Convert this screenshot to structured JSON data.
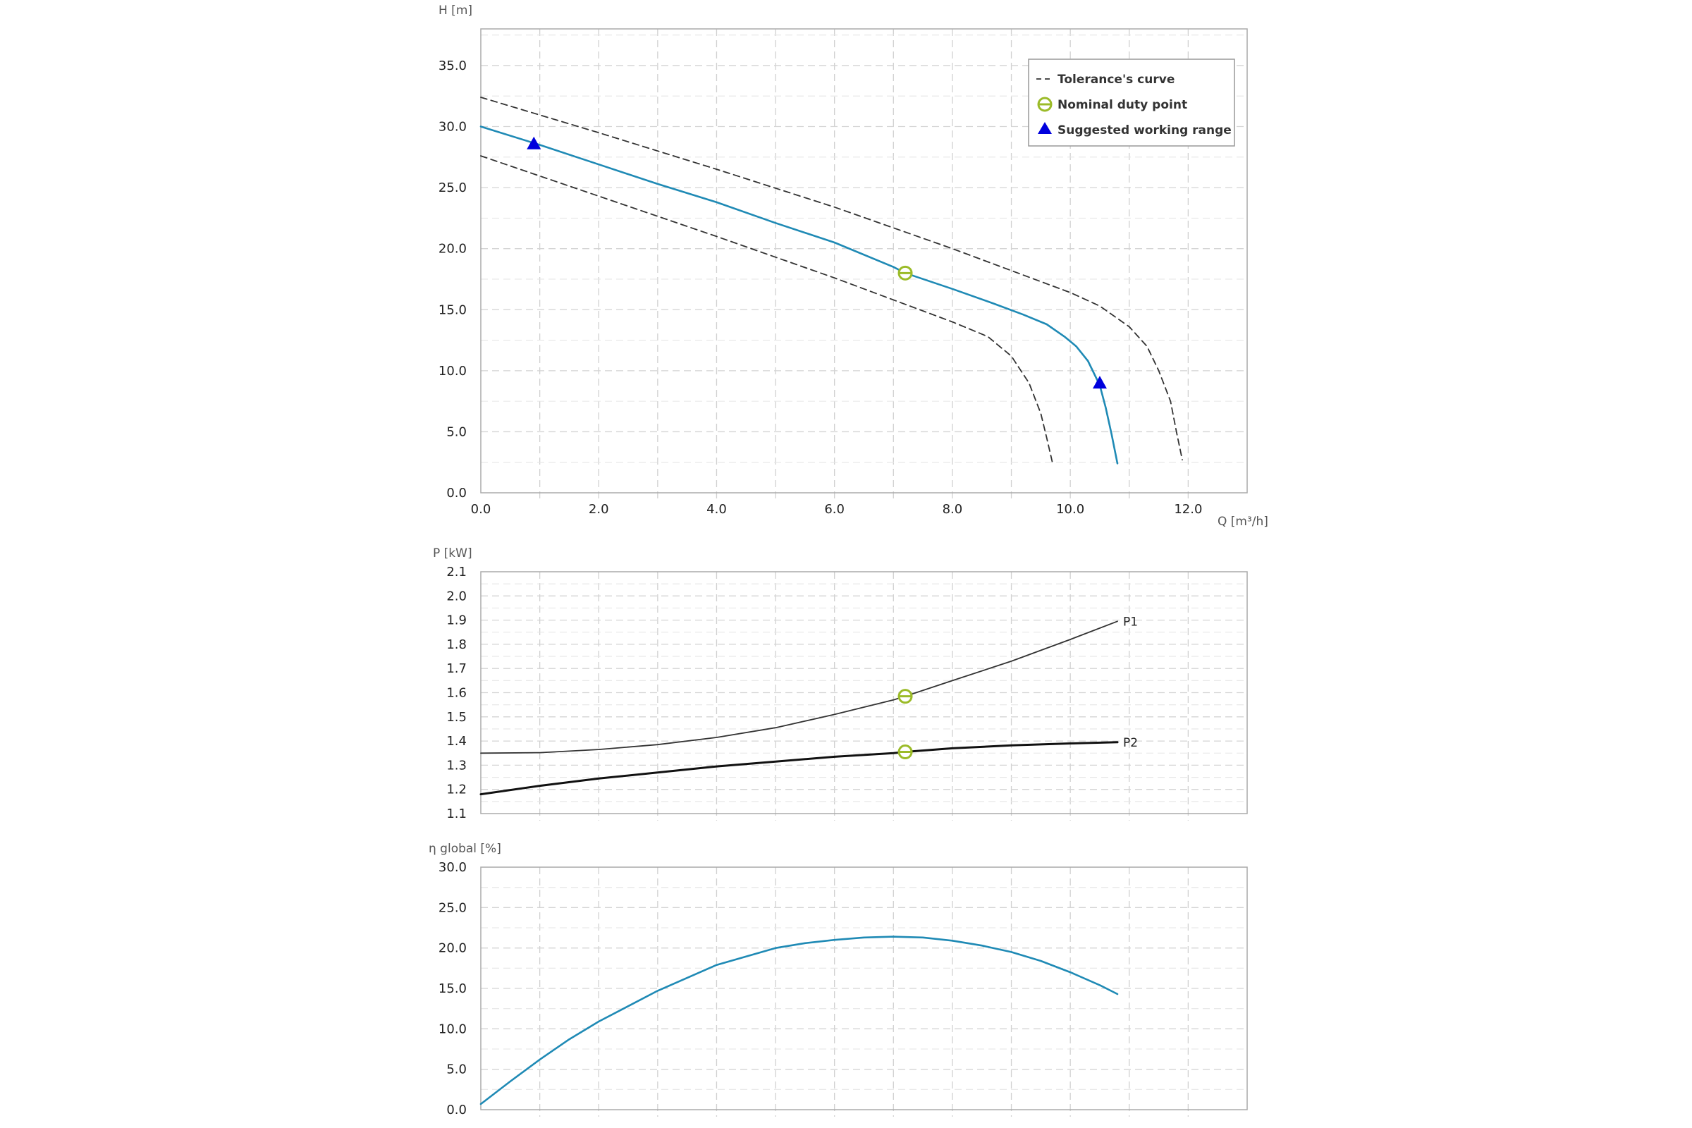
{
  "chart_data": [
    {
      "type": "line",
      "ylabel": "H [m]",
      "xlabel": "Q [m³/h]",
      "xlim": [
        0,
        13
      ],
      "ylim": [
        0,
        38
      ],
      "xticks": [
        "0.0",
        "2.0",
        "4.0",
        "6.0",
        "8.0",
        "10.0",
        "12.0"
      ],
      "yticks": [
        "0.0",
        "5.0",
        "10.0",
        "15.0",
        "20.0",
        "25.0",
        "30.0",
        "35.0"
      ],
      "grid": true,
      "legend_position": "top-right",
      "legend": [
        "Tolerance's curve",
        "Nominal duty point",
        "Suggested working range"
      ],
      "series": [
        {
          "style": "solid",
          "color": "#1f8ab5",
          "x": [
            0,
            1,
            2,
            3,
            4,
            5,
            6,
            7,
            7.2,
            8,
            8.7,
            9.2,
            9.6,
            9.9,
            10.1,
            10.3,
            10.5,
            10.6,
            10.7,
            10.8
          ],
          "y": [
            30.0,
            28.5,
            26.9,
            25.3,
            23.8,
            22.1,
            20.5,
            18.5,
            18.0,
            16.7,
            15.5,
            14.6,
            13.8,
            12.8,
            12.0,
            10.8,
            8.8,
            7.0,
            4.8,
            2.4
          ]
        },
        {
          "style": "dashed",
          "color": "#333333",
          "x": [
            0,
            2,
            4,
            6,
            8,
            10,
            10.5,
            11,
            11.3,
            11.5,
            11.7,
            11.8,
            11.9
          ],
          "y": [
            32.4,
            29.5,
            26.5,
            23.4,
            20.0,
            16.4,
            15.3,
            13.6,
            12.0,
            10.0,
            7.5,
            5.0,
            2.7
          ]
        },
        {
          "style": "dashed",
          "color": "#333333",
          "x": [
            0,
            2,
            4,
            6,
            7,
            8,
            8.6,
            9.0,
            9.3,
            9.5,
            9.6,
            9.7
          ],
          "y": [
            27.6,
            24.3,
            21.0,
            17.6,
            15.8,
            14.0,
            12.8,
            11.2,
            9.0,
            6.5,
            4.5,
            2.4
          ]
        }
      ],
      "duty_point": {
        "x": 7.2,
        "y": 18.0,
        "color": "#9bbb28"
      },
      "working_range": [
        {
          "x": 0.9,
          "y": 28.6
        },
        {
          "x": 10.5,
          "y": 9.0
        }
      ],
      "working_range_color": "#0000dd"
    },
    {
      "type": "line",
      "ylabel": "P [kW]",
      "xlim": [
        0,
        13
      ],
      "ylim": [
        1.1,
        2.1
      ],
      "yticks": [
        "1.1",
        "1.2",
        "1.3",
        "1.4",
        "1.5",
        "1.6",
        "1.7",
        "1.8",
        "1.9",
        "2.0",
        "2.1"
      ],
      "grid": true,
      "series": [
        {
          "name": "P1",
          "color": "#333333",
          "x": [
            0,
            1,
            2,
            3,
            4,
            5,
            6,
            7,
            7.2,
            8,
            9,
            10,
            10.8
          ],
          "y": [
            1.35,
            1.352,
            1.365,
            1.385,
            1.415,
            1.455,
            1.51,
            1.57,
            1.585,
            1.65,
            1.73,
            1.82,
            1.895
          ]
        },
        {
          "name": "P2",
          "color": "#111111",
          "x": [
            0,
            1,
            2,
            3,
            4,
            5,
            6,
            7,
            7.2,
            8,
            9,
            10,
            10.8
          ],
          "y": [
            1.18,
            1.215,
            1.245,
            1.27,
            1.295,
            1.315,
            1.335,
            1.35,
            1.355,
            1.37,
            1.382,
            1.39,
            1.395
          ]
        }
      ],
      "duty_points": [
        {
          "x": 7.2,
          "y": 1.585
        },
        {
          "x": 7.2,
          "y": 1.355
        }
      ],
      "duty_point_color": "#9bbb28"
    },
    {
      "type": "line",
      "ylabel": "η global [%]",
      "xlim": [
        0,
        13
      ],
      "ylim": [
        0,
        30
      ],
      "yticks": [
        "0.0",
        "5.0",
        "10.0",
        "15.0",
        "20.0",
        "25.0",
        "30.0"
      ],
      "grid": true,
      "series": [
        {
          "color": "#1f8ab5",
          "x": [
            0,
            0.5,
            1,
            1.5,
            2,
            3,
            4,
            5,
            5.5,
            6,
            6.5,
            7,
            7.5,
            8,
            8.5,
            9,
            9.5,
            10,
            10.5,
            10.8
          ],
          "y": [
            0.7,
            3.5,
            6.2,
            8.7,
            10.9,
            14.7,
            17.9,
            20.0,
            20.6,
            21.0,
            21.3,
            21.4,
            21.3,
            20.9,
            20.3,
            19.5,
            18.4,
            17.0,
            15.4,
            14.3
          ]
        }
      ]
    }
  ]
}
